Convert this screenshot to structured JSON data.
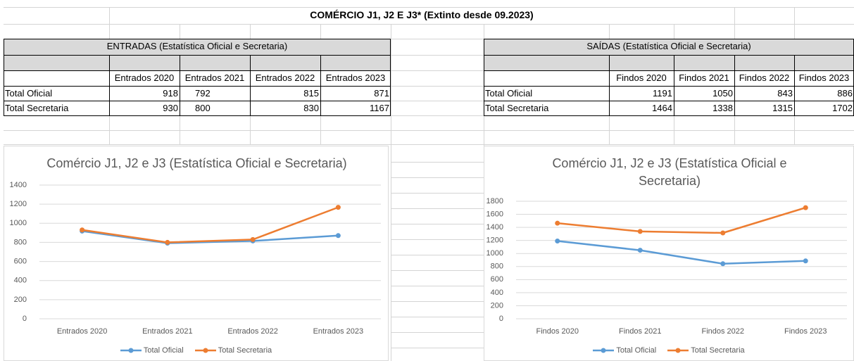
{
  "title": "COMÉRCIO J1, J2 E J3* (Extinto desde 09.2023)",
  "tables": [
    {
      "title": "ENTRADAS (Estatística Oficial e Secretaria)",
      "headers": [
        "Entrados 2020",
        "Entrados 2021",
        "Entrados 2022",
        "Entrados 2023"
      ],
      "rows": [
        [
          "Total Oficial",
          918,
          792,
          815,
          871
        ],
        [
          "Total Secretaria",
          930,
          800,
          830,
          1167
        ]
      ]
    },
    {
      "title": "SAÍDAS (Estatística Oficial e Secretaria)",
      "headers": [
        "Findos 2020",
        "Findos 2021",
        "Findos 2022",
        "Findos 2023"
      ],
      "rows": [
        [
          "Total Oficial",
          1191,
          1050,
          843,
          886
        ],
        [
          "Total Secretaria",
          1464,
          1338,
          1315,
          1702
        ]
      ]
    }
  ],
  "chart_data": [
    {
      "type": "line",
      "title": "Comércio J1, J2 e J3 (Estatística Oficial e Secretaria)",
      "categories": [
        "Entrados 2020",
        "Entrados 2021",
        "Entrados 2022",
        "Entrados 2023"
      ],
      "series": [
        {
          "name": "Total Oficial",
          "color": "#5b9bd5",
          "values": [
            918,
            792,
            815,
            871
          ]
        },
        {
          "name": "Total Secretaria",
          "color": "#ed7d31",
          "values": [
            930,
            800,
            830,
            1167
          ]
        }
      ],
      "ylim": [
        0,
        1400
      ],
      "yticks": [
        0,
        200,
        400,
        600,
        800,
        1000,
        1200,
        1400
      ],
      "grid": true,
      "legend": "bottom"
    },
    {
      "type": "line",
      "title": "Comércio J1, J2 e J3 (Estatística Oficial e Secretaria)",
      "categories": [
        "Findos 2020",
        "Findos 2021",
        "Findos 2022",
        "Findos 2023"
      ],
      "series": [
        {
          "name": "Total Oficial",
          "color": "#5b9bd5",
          "values": [
            1191,
            1050,
            843,
            886
          ]
        },
        {
          "name": "Total Secretaria",
          "color": "#ed7d31",
          "values": [
            1464,
            1338,
            1315,
            1702
          ]
        }
      ],
      "ylim": [
        0,
        1800
      ],
      "yticks": [
        0,
        200,
        400,
        600,
        800,
        1000,
        1200,
        1400,
        1600,
        1800
      ],
      "grid": true,
      "legend": "bottom"
    }
  ]
}
